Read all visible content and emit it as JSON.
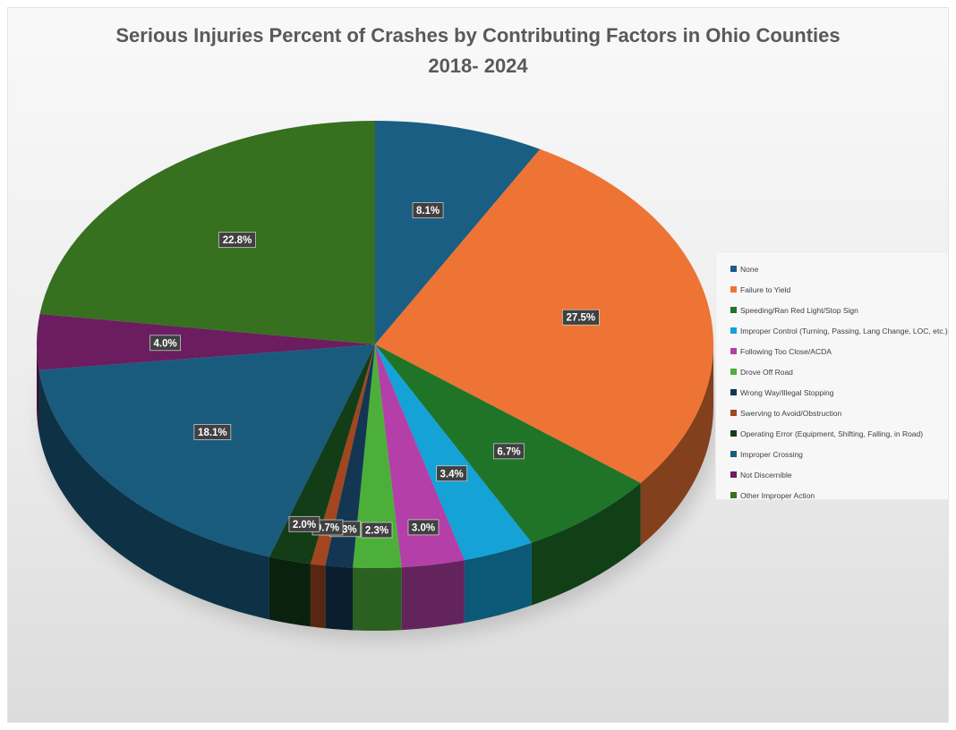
{
  "chart_data": {
    "type": "pie",
    "title_lines": [
      "Serious Injuries Percent of Crashes by Contributing Factors in Ohio Counties",
      "2018- 2024"
    ],
    "three_d": true,
    "legend_position": "right",
    "slices": [
      {
        "name": "None",
        "value": 8.1,
        "label": "8.1%",
        "color": "#1b5e84"
      },
      {
        "name": "Failure to Yield",
        "value": 27.5,
        "label": "27.5%",
        "color": "#ed7434"
      },
      {
        "name": "Speeding/Ran Red Light/Stop Sign",
        "value": 6.7,
        "label": "6.7%",
        "color": "#1f7428"
      },
      {
        "name": "Improper Control (Turning, Passing, Lang Change, LOC, etc.)",
        "value": 3.4,
        "label": "3.4%",
        "color": "#14a2d7"
      },
      {
        "name": "Following Too Close/ACDA",
        "value": 3.0,
        "label": "3.0%",
        "color": "#b43fa9"
      },
      {
        "name": "Drove Off Road",
        "value": 2.3,
        "label": "2.3%",
        "color": "#4caf3a"
      },
      {
        "name": "Wrong Way/Illegal Stopping",
        "value": 1.3,
        "label": "1.3%",
        "color": "#133653"
      },
      {
        "name": "Swerving to Avoid/Obstruction",
        "value": 0.7,
        "label": "0.7%",
        "color": "#a1461f"
      },
      {
        "name": "Operating Error (Equipment, Shifting, Falling, in Road)",
        "value": 2.0,
        "label": "2.0%",
        "color": "#123d17"
      },
      {
        "name": "Improper Crossing",
        "value": 18.1,
        "label": "18.1%",
        "color": "#195b7d"
      },
      {
        "name": "Not Discernible",
        "value": 4.0,
        "label": "4.0%",
        "color": "#6b1d60"
      },
      {
        "name": "Other Improper Action",
        "value": 22.8,
        "label": "22.8%",
        "color": "#37701f"
      }
    ],
    "legend_labels": [
      "None",
      "Failure to Yield",
      "Speeding/Ran Red Light/Stop Sign",
      "Improper Control (Turning, Passing, Lang Change, LOC, etc.)",
      "Following Too Close/ACDA",
      "Drove Off Road",
      "Wrong Way/Illegal Stopping",
      "Swerving to Avoid/Obstruction",
      "Operating Error (Equipment, Shifting, Falling, in Road)",
      "Improper Crossing",
      "Not Discernible",
      "Other Improper Action"
    ]
  }
}
